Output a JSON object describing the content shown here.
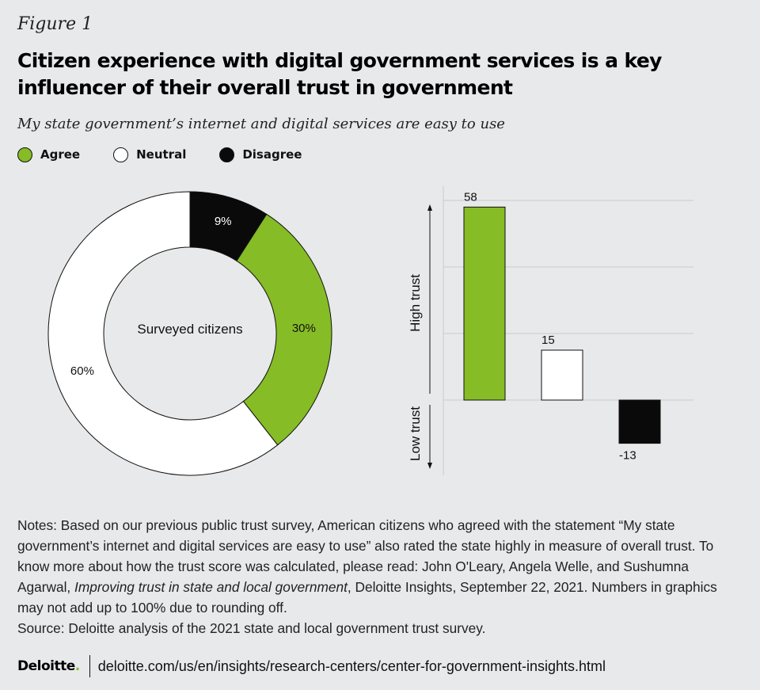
{
  "figure_label": "Figure 1",
  "title": "Citizen experience with digital government services is a key influencer of their overall trust in government",
  "subtitle": "My state government’s internet and digital services are easy to use",
  "colors": {
    "agree": "#86bc25",
    "neutral": "#ffffff",
    "disagree": "#0a0a0a",
    "outline": "#111111",
    "grid": "#c9cacc"
  },
  "legend": [
    {
      "label": "Agree",
      "color": "#86bc25"
    },
    {
      "label": "Neutral",
      "color": "#ffffff"
    },
    {
      "label": "Disagree",
      "color": "#0a0a0a"
    }
  ],
  "chart_data": [
    {
      "type": "pie",
      "variant": "donut",
      "center_label": "Surveyed citizens",
      "slices": [
        {
          "name": "Disagree",
          "value": 9,
          "label": "9%"
        },
        {
          "name": "Agree",
          "value": 30,
          "label": "30%"
        },
        {
          "name": "Neutral",
          "value": 60,
          "label": "60%"
        }
      ]
    },
    {
      "type": "bar",
      "categories": [
        "Agree",
        "Neutral",
        "Disagree"
      ],
      "values": [
        58,
        15,
        -13
      ],
      "value_labels": [
        "58",
        "15",
        "-13"
      ],
      "ylim": [
        -20,
        60
      ],
      "ylabel_high": "High trust",
      "ylabel_low": "Low trust",
      "grid": true
    }
  ],
  "notes": {
    "part1": "Notes: Based on our previous public trust survey, American citizens who agreed with the statement “My state government’s internet and digital services are easy to use” also rated the state highly in measure of overall trust. To know more about how the trust score was calculated, please read: John O'Leary, Angela Welle, and Sushumna Agarwal, ",
    "italic": "Improving trust in state and local government",
    "part2": ", Deloitte Insights, September 22, 2021. Numbers in graphics may not add up to 100% due to rounding off.",
    "source": "Source: Deloitte analysis of the 2021 state and local government trust survey."
  },
  "footer": {
    "brand": "Deloitte",
    "brand_dot": ".",
    "url": "deloitte.com/us/en/insights/research-centers/center-for-government-insights.html"
  }
}
